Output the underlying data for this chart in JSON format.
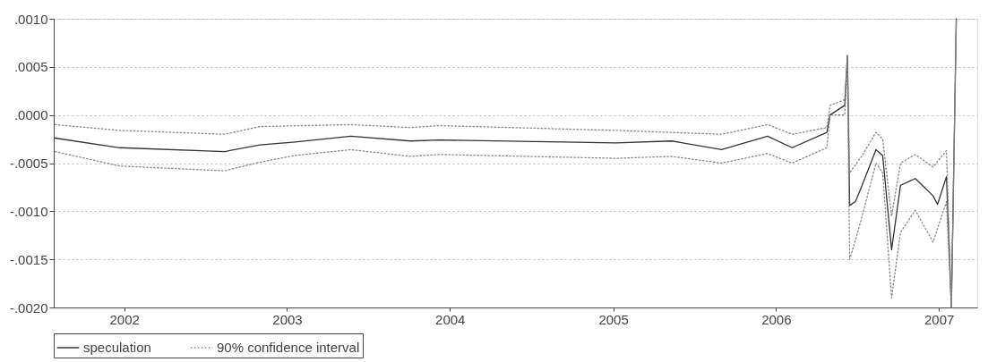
{
  "chart_data": {
    "type": "line",
    "xlim": [
      "2001-07-27",
      "2007-03-28"
    ],
    "xticks": [
      "2002",
      "2003",
      "2004",
      "2005",
      "2006",
      "2007"
    ],
    "ylim": [
      -0.002,
      0.001
    ],
    "yticks": [
      {
        "value": 0.001,
        "label": ".0010"
      },
      {
        "value": 0.0005,
        "label": ".0005"
      },
      {
        "value": 0,
        "label": ".0000"
      },
      {
        "value": -0.0005,
        "label": "-.0005"
      },
      {
        "value": -0.001,
        "label": "-.0010"
      },
      {
        "value": -0.0015,
        "label": "-.0015"
      },
      {
        "value": -0.002,
        "label": "-.0020"
      }
    ],
    "grid": "y",
    "legend": "bottom",
    "series": [
      {
        "name": "speculation",
        "color": "#333333",
        "line_style": "solid",
        "x": [
          "2001-07-30",
          "2001-12-22",
          "2002-08-14",
          "2002-11-01",
          "2003-01-19",
          "2003-05-24",
          "2003-10-05",
          "2003-12-08",
          "2005-01-07",
          "2005-05-12",
          "2005-09-01",
          "2005-12-13",
          "2006-02-06",
          "2006-04-25",
          "2006-05-02",
          "2006-06-04",
          "2006-06-10",
          "2006-06-15",
          "2006-06-28",
          "2006-07-13",
          "2006-08-13",
          "2006-08-28",
          "2006-09-17",
          "2006-10-07",
          "2006-11-09",
          "2006-12-19",
          "2006-12-29",
          "2007-01-18",
          "2007-01-29",
          "2007-02-09"
        ],
        "values": [
          -0.00024,
          -0.00034,
          -0.00038,
          -0.00031,
          -0.00028,
          -0.00022,
          -0.00027,
          -0.00026,
          -0.00029,
          -0.00027,
          -0.00036,
          -0.00022,
          -0.00034,
          -0.00018,
          0,
          0.0001,
          0.00062,
          -0.00094,
          -0.0009,
          -0.00073,
          -0.00036,
          -0.00042,
          -0.0014,
          -0.00073,
          -0.00066,
          -0.00084,
          -0.00093,
          -0.00064,
          -0.002,
          0.001
        ]
      },
      {
        "name": "90% confidence interval",
        "color": "#888888",
        "line_style": "dotted",
        "x": [
          "2001-07-30",
          "2001-12-22",
          "2002-08-14",
          "2002-11-01",
          "2003-05-24",
          "2003-10-05",
          "2003-12-08",
          "2005-01-07",
          "2005-09-01",
          "2005-12-13",
          "2006-02-06",
          "2006-04-25",
          "2006-05-02",
          "2006-06-04",
          "2006-06-10",
          "2006-06-15",
          "2006-07-13",
          "2006-08-13",
          "2006-08-28",
          "2006-09-17",
          "2006-10-07",
          "2006-11-09",
          "2006-12-19",
          "2007-01-18",
          "2007-01-29",
          "2007-02-09"
        ],
        "values": [
          -0.0001,
          -0.00016,
          -0.0002,
          -0.00012,
          -0.0001,
          -0.00013,
          -0.00011,
          -0.00016,
          -0.0002,
          -0.0001,
          -0.0002,
          -0.00013,
          0.0001,
          0.00016,
          0.00062,
          -0.0006,
          -0.00042,
          -0.00018,
          -0.00025,
          -0.00105,
          -0.0005,
          -0.00041,
          -0.00054,
          -0.00037,
          -0.002,
          0.001
        ]
      },
      {
        "color": "#888888",
        "line_style": "dotted",
        "x": [
          "2001-07-30",
          "2001-12-22",
          "2002-08-14",
          "2002-11-01",
          "2003-01-19",
          "2003-05-24",
          "2003-10-05",
          "2003-12-08",
          "2005-01-07",
          "2005-05-12",
          "2005-09-01",
          "2005-12-13",
          "2006-02-06",
          "2006-04-25",
          "2006-05-02",
          "2006-06-04",
          "2006-06-10",
          "2006-06-15",
          "2006-06-28",
          "2006-07-13",
          "2006-08-13",
          "2006-08-28",
          "2006-09-17",
          "2006-10-07",
          "2006-11-09",
          "2006-12-19",
          "2007-01-18",
          "2007-01-29",
          "2007-02-09"
        ],
        "values": [
          -0.00038,
          -0.00053,
          -0.00058,
          -0.00049,
          -0.00042,
          -0.00036,
          -0.00043,
          -0.00041,
          -0.00045,
          -0.00043,
          -0.0005,
          -0.0004,
          -0.0005,
          -0.00034,
          0,
          0,
          0.0005,
          -0.0015,
          -0.0013,
          -0.00105,
          -0.0005,
          -0.0006,
          -0.0019,
          -0.00122,
          -0.00099,
          -0.00132,
          -0.0009,
          -0.002,
          0.001
        ]
      }
    ]
  }
}
